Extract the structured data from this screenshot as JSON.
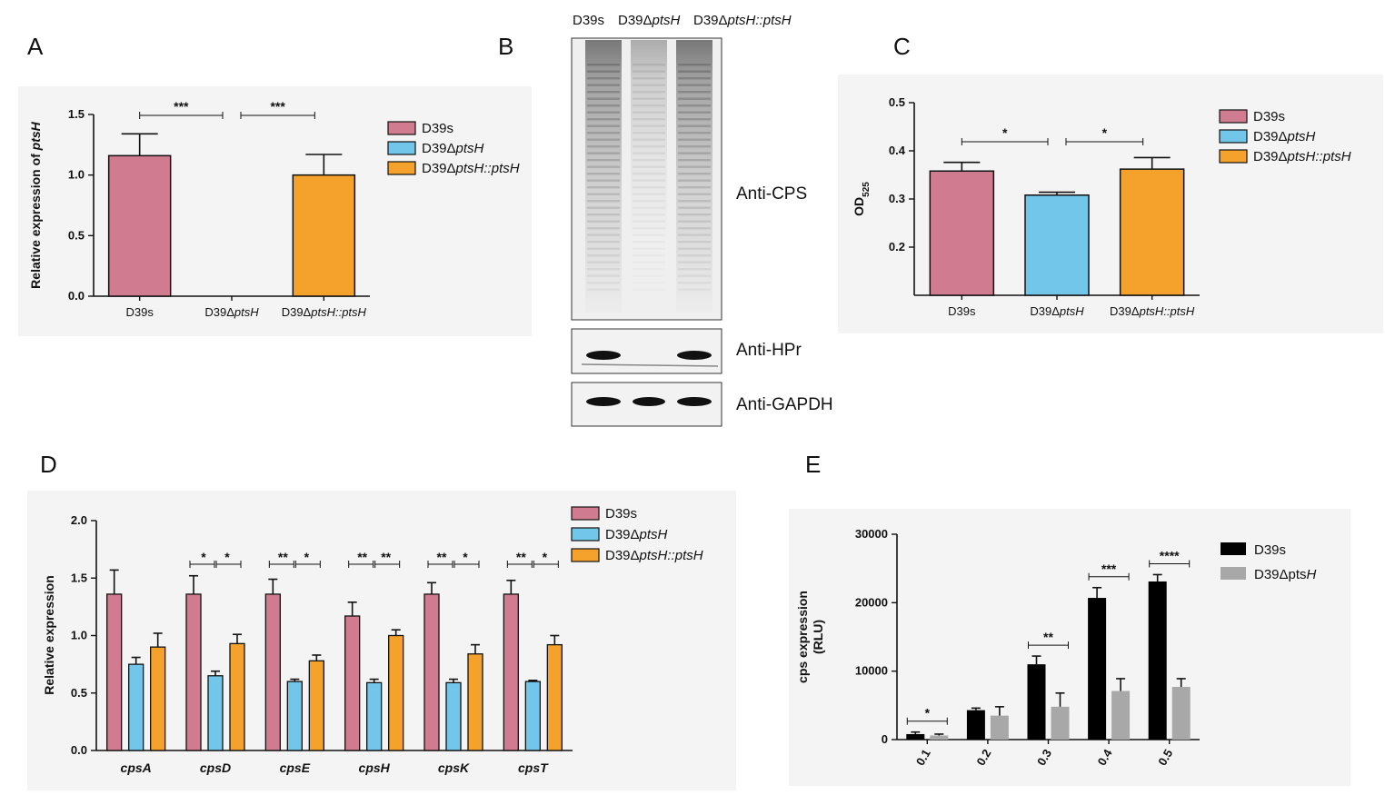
{
  "colors": {
    "D39s": "#d07b8f",
    "D39DptsH": "#72c6ea",
    "D39DptsH_comp": "#f4a22c",
    "E_D39s": "#000000",
    "E_D39DptsH": "#a8a8a8",
    "panel_bg": "#f4f4f4"
  },
  "panels": {
    "A": "A",
    "B": "B",
    "C": "C",
    "D": "D",
    "E": "E"
  },
  "blot": {
    "lanes": [
      {
        "pre": "D39s",
        "it": ""
      },
      {
        "pre": "D39Δ",
        "it": "ptsH"
      },
      {
        "pre": "D39Δ",
        "it": "ptsH::ptsH"
      }
    ],
    "labels": [
      "Anti-CPS",
      "Anti-HPr",
      "Anti-GAPDH"
    ]
  },
  "chart_data": [
    {
      "panel": "A",
      "type": "bar",
      "ylabel_pre": "Relative expression of ",
      "ylabel_it": "ptsH",
      "ylim": [
        0,
        1.5
      ],
      "yticks": [
        "0.0",
        "0.5",
        "1.0",
        "1.5"
      ],
      "categories": [
        {
          "pre": "D39s",
          "it": ""
        },
        {
          "pre": "D39Δ",
          "it": "ptsH"
        },
        {
          "pre": "D39Δ",
          "it": "ptsH::ptsH"
        }
      ],
      "values": [
        1.16,
        0.0,
        1.0
      ],
      "errors": [
        0.18,
        0.0,
        0.17
      ],
      "legend": [
        {
          "pre": "D39s",
          "it": ""
        },
        {
          "pre": "D39Δ",
          "it": "ptsH"
        },
        {
          "pre": "D39Δ",
          "it": "ptsH::ptsH"
        }
      ],
      "significance": [
        {
          "from": 0,
          "to": 1,
          "label": "***"
        },
        {
          "from": 1,
          "to": 2,
          "label": "***"
        }
      ]
    },
    {
      "panel": "C",
      "type": "bar",
      "ylabel_pre": "OD",
      "ylabel_sub": "525",
      "ylim": [
        0.1,
        0.5
      ],
      "yticks": [
        "0.2",
        "0.3",
        "0.4",
        "0.5"
      ],
      "categories": [
        {
          "pre": "D39s",
          "it": ""
        },
        {
          "pre": "D39Δ",
          "it": "ptsH"
        },
        {
          "pre": "D39Δ",
          "it": "ptsH::ptsH"
        }
      ],
      "values": [
        0.358,
        0.308,
        0.362
      ],
      "errors": [
        0.018,
        0.006,
        0.024
      ],
      "legend": [
        {
          "pre": "D39s",
          "it": ""
        },
        {
          "pre": "D39Δ",
          "it": "ptsH"
        },
        {
          "pre": "D39Δ",
          "it": "ptsH::ptsH"
        }
      ],
      "significance": [
        {
          "from": 0,
          "to": 1,
          "label": "*"
        },
        {
          "from": 1,
          "to": 2,
          "label": "*"
        }
      ]
    },
    {
      "panel": "D",
      "type": "bar",
      "ylabel": "Relative expression",
      "ylim": [
        0,
        2.0
      ],
      "yticks": [
        "0.0",
        "0.5",
        "1.0",
        "1.5",
        "2.0"
      ],
      "categories": [
        "cpsA",
        "cpsD",
        "cpsE",
        "cpsH",
        "cpsK",
        "cpsT"
      ],
      "legend": [
        {
          "pre": "D39s",
          "it": ""
        },
        {
          "pre": "D39Δ",
          "it": "ptsH"
        },
        {
          "pre": "D39Δ",
          "it": "ptsH::ptsH"
        }
      ],
      "series": [
        {
          "values": [
            1.36,
            1.36,
            1.36,
            1.17,
            1.36,
            1.36
          ],
          "errors": [
            0.21,
            0.16,
            0.13,
            0.12,
            0.1,
            0.12
          ]
        },
        {
          "values": [
            0.75,
            0.65,
            0.6,
            0.59,
            0.59,
            0.6
          ],
          "errors": [
            0.06,
            0.04,
            0.02,
            0.03,
            0.03,
            0.01
          ]
        },
        {
          "values": [
            0.9,
            0.93,
            0.78,
            1.0,
            0.84,
            0.92
          ],
          "errors": [
            0.12,
            0.08,
            0.05,
            0.05,
            0.08,
            0.08
          ]
        }
      ],
      "significance": [
        {
          "cat": 1,
          "left": "*",
          "right": "*"
        },
        {
          "cat": 2,
          "left": "**",
          "right": "*"
        },
        {
          "cat": 3,
          "left": "**",
          "right": "**"
        },
        {
          "cat": 4,
          "left": "**",
          "right": "*"
        },
        {
          "cat": 5,
          "left": "**",
          "right": "*"
        }
      ]
    },
    {
      "panel": "E",
      "type": "bar",
      "ylabel_line1": "cps expression",
      "ylabel_line2": "(RLU)",
      "ylim": [
        0,
        30000
      ],
      "yticks": [
        "0",
        "10000",
        "20000",
        "30000"
      ],
      "categories": [
        "0.1",
        "0.2",
        "0.3",
        "0.4",
        "0.5"
      ],
      "legend": [
        {
          "pre": "D39s",
          "it": ""
        },
        {
          "pre": "D39Δpts",
          "it": "H"
        }
      ],
      "series": [
        {
          "values": [
            800,
            4300,
            11000,
            20700,
            23100
          ],
          "errors": [
            300,
            300,
            1200,
            1500,
            1000
          ]
        },
        {
          "values": [
            600,
            3500,
            4800,
            7100,
            7700
          ],
          "errors": [
            200,
            1300,
            2000,
            1800,
            1200
          ]
        }
      ],
      "significance": [
        {
          "cat": 0,
          "label": "*"
        },
        {
          "cat": 2,
          "label": "**"
        },
        {
          "cat": 3,
          "label": "***"
        },
        {
          "cat": 4,
          "label": "****"
        }
      ]
    }
  ]
}
